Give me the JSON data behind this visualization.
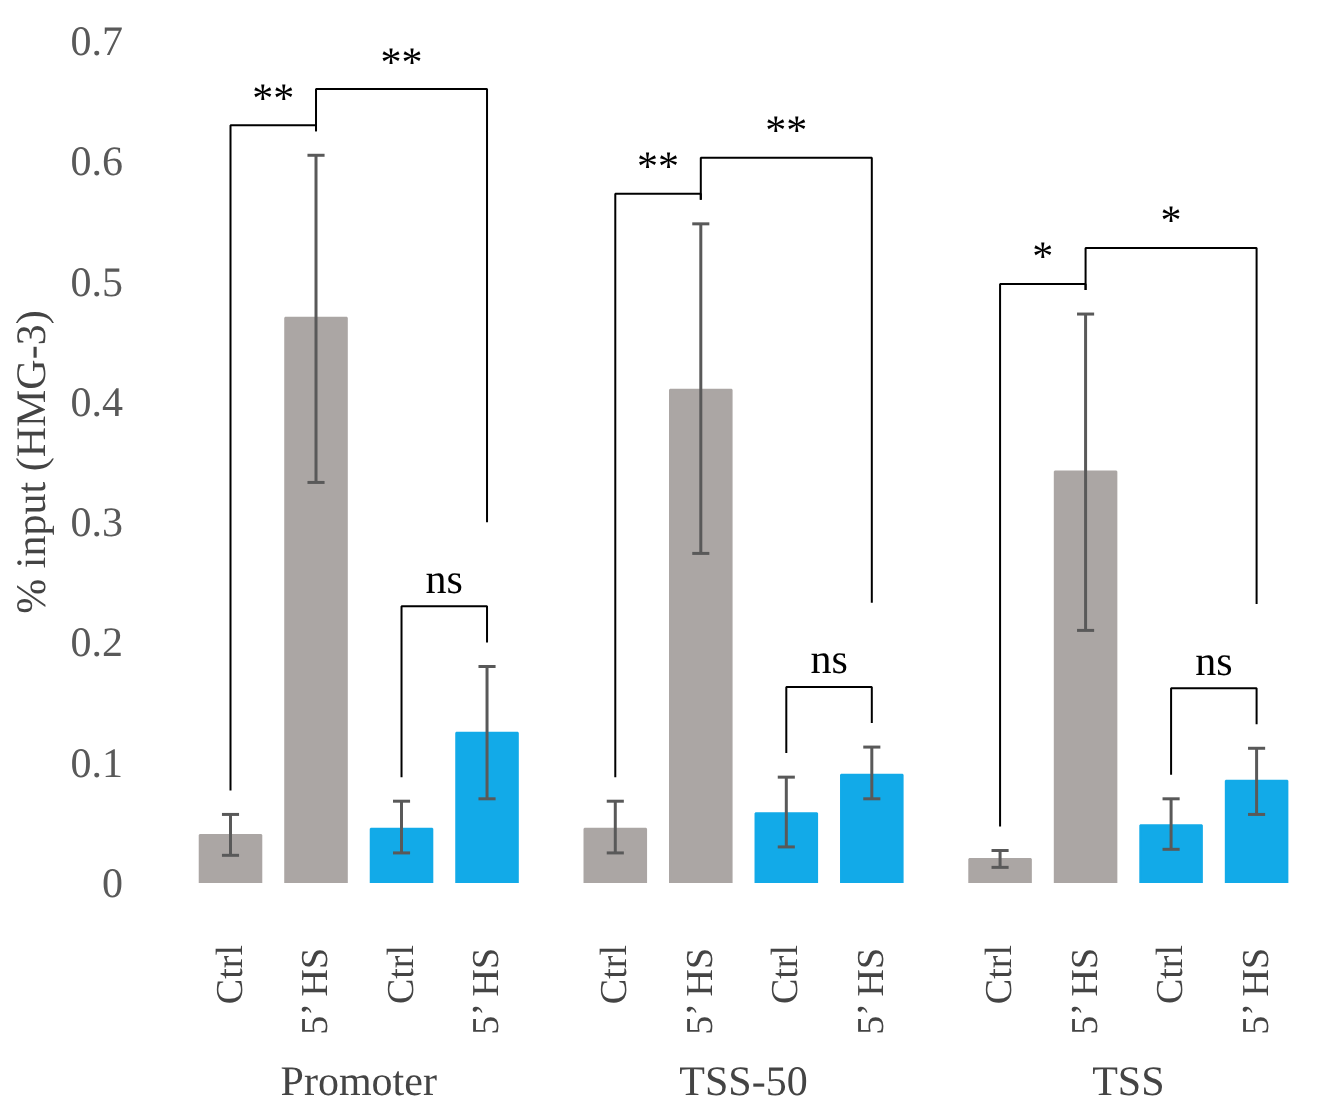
{
  "chart_data": {
    "type": "bar",
    "ylabel": "% input (HMG-3)",
    "categories": [
      "Ctrl",
      "5’ HS",
      "Ctrl",
      "5’ HS",
      "Ctrl",
      "5’ HS",
      "Ctrl",
      "5’ HS",
      "Ctrl",
      "5’ HS",
      "Ctrl",
      "5’ HS"
    ],
    "values": [
      0.04,
      0.47,
      0.045,
      0.125,
      0.045,
      0.41,
      0.058,
      0.09,
      0.02,
      0.342,
      0.048,
      0.085
    ],
    "colors": [
      "#aba6a4",
      "#aba6a4",
      "#12aae8",
      "#12aae8",
      "#aba6a4",
      "#aba6a4",
      "#12aae8",
      "#12aae8",
      "#aba6a4",
      "#aba6a4",
      "#12aae8",
      "#12aae8"
    ],
    "errors": [
      [
        0.023,
        0.057
      ],
      [
        0.333,
        0.605
      ],
      [
        0.025,
        0.068
      ],
      [
        0.07,
        0.18
      ],
      [
        0.025,
        0.068
      ],
      [
        0.274,
        0.548
      ],
      [
        0.03,
        0.088
      ],
      [
        0.07,
        0.113
      ],
      [
        0.013,
        0.027
      ],
      [
        0.21,
        0.473
      ],
      [
        0.028,
        0.07
      ],
      [
        0.057,
        0.112
      ]
    ],
    "ylim": [
      0,
      0.7
    ],
    "yticks": [
      0,
      {
        "value": 0.1,
        "label": "0.1"
      },
      {
        "value": 0.2,
        "label": "0.2"
      },
      {
        "value": 0.3,
        "label": "0.3"
      },
      {
        "value": 0.4,
        "label": "0.4"
      },
      {
        "value": 0.5,
        "label": "0.5"
      },
      {
        "value": 0.6,
        "label": "0.6"
      },
      {
        "value": 0.7,
        "label": "0.7"
      }
    ],
    "grid": false,
    "annotations": [
      "**",
      "**",
      "ns",
      "**",
      "**",
      "ns",
      "*",
      "*",
      "ns",
      "Promoter",
      "TSS-50",
      "TSS"
    ]
  }
}
